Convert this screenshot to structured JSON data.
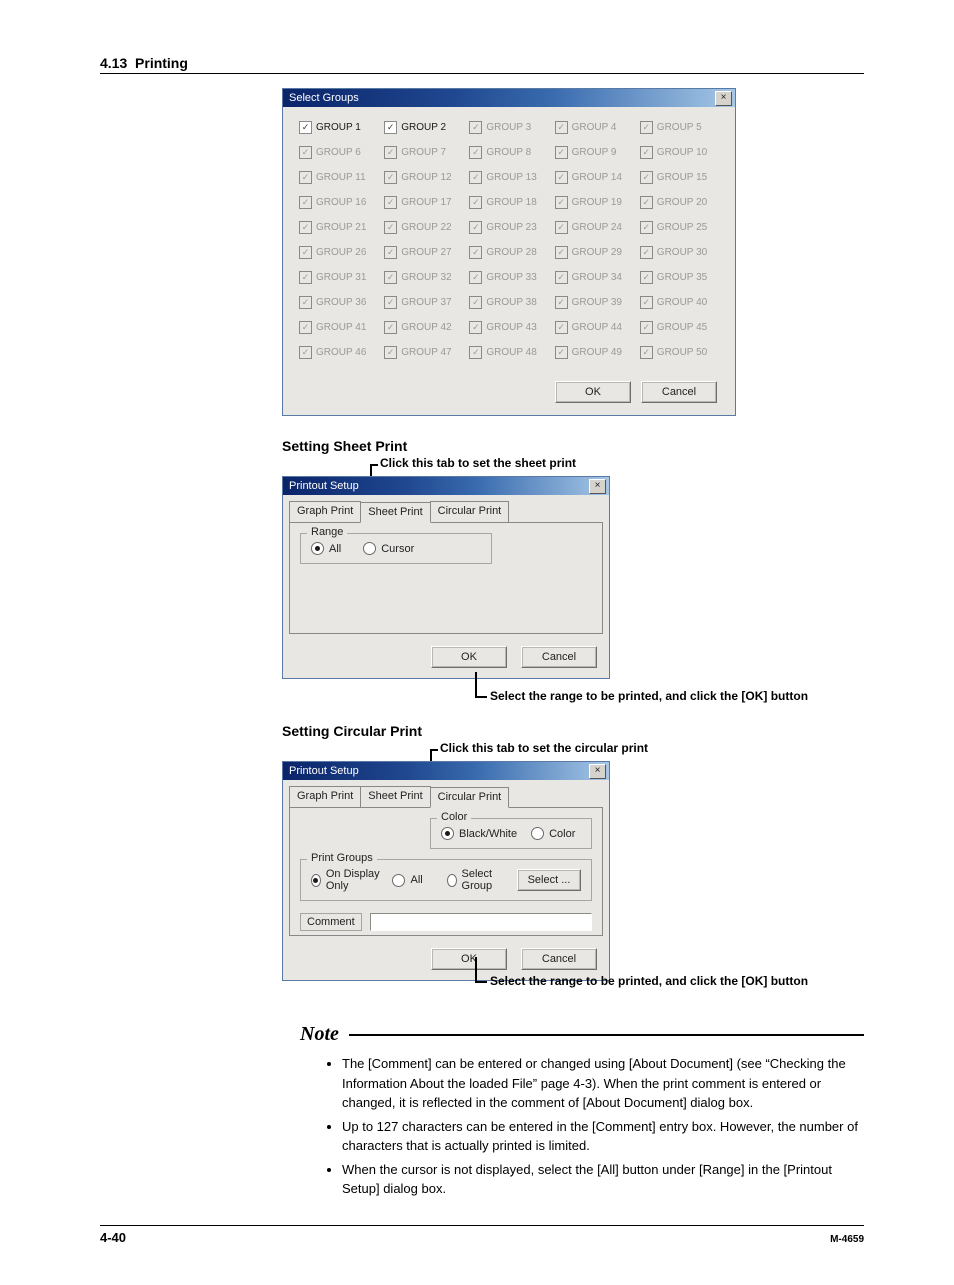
{
  "header": {
    "section_number": "4.13",
    "section_title": "Printing"
  },
  "select_groups": {
    "title": "Select Groups",
    "ok": "OK",
    "cancel": "Cancel",
    "close_glyph": "×",
    "items": [
      {
        "label": "GROUP 1",
        "enabled": true,
        "checked": true
      },
      {
        "label": "GROUP 2",
        "enabled": true,
        "checked": true
      },
      {
        "label": "GROUP 3",
        "enabled": false,
        "checked": true
      },
      {
        "label": "GROUP 4",
        "enabled": false,
        "checked": true
      },
      {
        "label": "GROUP 5",
        "enabled": false,
        "checked": true
      },
      {
        "label": "GROUP 6",
        "enabled": false,
        "checked": true
      },
      {
        "label": "GROUP 7",
        "enabled": false,
        "checked": true
      },
      {
        "label": "GROUP 8",
        "enabled": false,
        "checked": true
      },
      {
        "label": "GROUP 9",
        "enabled": false,
        "checked": true
      },
      {
        "label": "GROUP 10",
        "enabled": false,
        "checked": true
      },
      {
        "label": "GROUP 11",
        "enabled": false,
        "checked": true
      },
      {
        "label": "GROUP 12",
        "enabled": false,
        "checked": true
      },
      {
        "label": "GROUP 13",
        "enabled": false,
        "checked": true
      },
      {
        "label": "GROUP 14",
        "enabled": false,
        "checked": true
      },
      {
        "label": "GROUP 15",
        "enabled": false,
        "checked": true
      },
      {
        "label": "GROUP 16",
        "enabled": false,
        "checked": true
      },
      {
        "label": "GROUP 17",
        "enabled": false,
        "checked": true
      },
      {
        "label": "GROUP 18",
        "enabled": false,
        "checked": true
      },
      {
        "label": "GROUP 19",
        "enabled": false,
        "checked": true
      },
      {
        "label": "GROUP 20",
        "enabled": false,
        "checked": true
      },
      {
        "label": "GROUP 21",
        "enabled": false,
        "checked": true
      },
      {
        "label": "GROUP 22",
        "enabled": false,
        "checked": true
      },
      {
        "label": "GROUP 23",
        "enabled": false,
        "checked": true
      },
      {
        "label": "GROUP 24",
        "enabled": false,
        "checked": true
      },
      {
        "label": "GROUP 25",
        "enabled": false,
        "checked": true
      },
      {
        "label": "GROUP 26",
        "enabled": false,
        "checked": true
      },
      {
        "label": "GROUP 27",
        "enabled": false,
        "checked": true
      },
      {
        "label": "GROUP 28",
        "enabled": false,
        "checked": true
      },
      {
        "label": "GROUP 29",
        "enabled": false,
        "checked": true
      },
      {
        "label": "GROUP 30",
        "enabled": false,
        "checked": true
      },
      {
        "label": "GROUP 31",
        "enabled": false,
        "checked": true
      },
      {
        "label": "GROUP 32",
        "enabled": false,
        "checked": true
      },
      {
        "label": "GROUP 33",
        "enabled": false,
        "checked": true
      },
      {
        "label": "GROUP 34",
        "enabled": false,
        "checked": true
      },
      {
        "label": "GROUP 35",
        "enabled": false,
        "checked": true
      },
      {
        "label": "GROUP 36",
        "enabled": false,
        "checked": true
      },
      {
        "label": "GROUP 37",
        "enabled": false,
        "checked": true
      },
      {
        "label": "GROUP 38",
        "enabled": false,
        "checked": true
      },
      {
        "label": "GROUP 39",
        "enabled": false,
        "checked": true
      },
      {
        "label": "GROUP 40",
        "enabled": false,
        "checked": true
      },
      {
        "label": "GROUP 41",
        "enabled": false,
        "checked": true
      },
      {
        "label": "GROUP 42",
        "enabled": false,
        "checked": true
      },
      {
        "label": "GROUP 43",
        "enabled": false,
        "checked": true
      },
      {
        "label": "GROUP 44",
        "enabled": false,
        "checked": true
      },
      {
        "label": "GROUP 45",
        "enabled": false,
        "checked": true
      },
      {
        "label": "GROUP 46",
        "enabled": false,
        "checked": true
      },
      {
        "label": "GROUP 47",
        "enabled": false,
        "checked": true
      },
      {
        "label": "GROUP 48",
        "enabled": false,
        "checked": true
      },
      {
        "label": "GROUP 49",
        "enabled": false,
        "checked": true
      },
      {
        "label": "GROUP 50",
        "enabled": false,
        "checked": true
      }
    ]
  },
  "sheet_print": {
    "heading": "Setting Sheet Print",
    "tab_callout": "Click this tab to set the sheet print",
    "ok_callout": "Select the range to be printed, and click the [OK] button",
    "dialog_title": "Printout Setup",
    "tab_graph": "Graph Print",
    "tab_sheet": "Sheet Print",
    "tab_circular": "Circular Print",
    "range_legend": "Range",
    "radio_all": "All",
    "radio_cursor": "Cursor",
    "ok": "OK",
    "cancel": "Cancel"
  },
  "circular_print": {
    "heading": "Setting Circular Print",
    "tab_callout": "Click this tab to set the circular print",
    "ok_callout": "Select the range to be printed, and click the [OK] button",
    "dialog_title": "Printout Setup",
    "tab_graph": "Graph Print",
    "tab_sheet": "Sheet Print",
    "tab_circular": "Circular Print",
    "color_legend": "Color",
    "radio_bw": "Black/White",
    "radio_color": "Color",
    "pg_legend": "Print Groups",
    "radio_display": "On Display Only",
    "radio_all": "All",
    "radio_selgroup": "Select Group",
    "select_btn": "Select ...",
    "comment_label": "Comment",
    "comment_value": "",
    "ok": "OK",
    "cancel": "Cancel"
  },
  "note": {
    "heading": "Note",
    "items": [
      "The [Comment] can be entered or changed using [About Document] (see “Checking the Information About the loaded File” page 4-3).  When the print comment is entered or changed, it is reflected in the comment of [About Document] dialog box.",
      "Up to 127 characters can be entered in the [Comment] entry box.  However, the number of characters that is actually printed is limited.",
      "When the cursor is not displayed, select the [All] button under [Range] in the [Printout Setup] dialog box."
    ]
  },
  "footer": {
    "page": "4-40",
    "docid": "M-4659"
  },
  "style": {
    "titlebar_gradient": [
      "#0a246a",
      "#204890",
      "#3a6caf",
      "#a6c7e6"
    ],
    "dialog_bg": "#e9e7e3",
    "disabled_text": "#9a9a95",
    "enabled_text": "#1a1a1a",
    "border": "#888888",
    "page_bg": "#ffffff",
    "body_font_size_pt": 10,
    "heading_font_size_pt": 11,
    "note_head_font": "Times New Roman italic bold 15pt"
  }
}
